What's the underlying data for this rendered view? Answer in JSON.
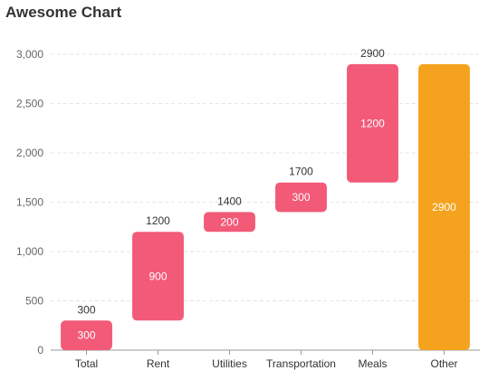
{
  "chart_data": {
    "type": "bar",
    "subtype": "waterfall",
    "title": "Awesome Chart",
    "xlabel": "",
    "ylabel": "",
    "ylim": [
      0,
      3000
    ],
    "yticks": [
      0,
      500,
      1000,
      1500,
      2000,
      2500,
      3000
    ],
    "ytick_labels": [
      "0",
      "500",
      "1,000",
      "1,500",
      "2,000",
      "2,500",
      "3,000"
    ],
    "grid": true,
    "categories": [
      "Total",
      "Rent",
      "Utilities",
      "Transportation",
      "Meals",
      "Other"
    ],
    "bars": [
      {
        "category": "Total",
        "start": 0,
        "end": 300,
        "value": 300,
        "top_label": "300",
        "kind": "increase"
      },
      {
        "category": "Rent",
        "start": 300,
        "end": 1200,
        "value": 900,
        "top_label": "1200",
        "kind": "increase"
      },
      {
        "category": "Utilities",
        "start": 1200,
        "end": 1400,
        "value": 200,
        "top_label": "1400",
        "kind": "increase"
      },
      {
        "category": "Transportation",
        "start": 1400,
        "end": 1700,
        "value": 300,
        "top_label": "1700",
        "kind": "increase"
      },
      {
        "category": "Meals",
        "start": 1700,
        "end": 2900,
        "value": 1200,
        "top_label": "2900",
        "kind": "increase"
      },
      {
        "category": "Other",
        "start": 0,
        "end": 2900,
        "value": 2900,
        "top_label": "",
        "kind": "total"
      }
    ],
    "colors": {
      "increase": "#f25a78",
      "total": "#f5a31e",
      "grid": "#e6e6e6",
      "axis": "#999999"
    }
  }
}
